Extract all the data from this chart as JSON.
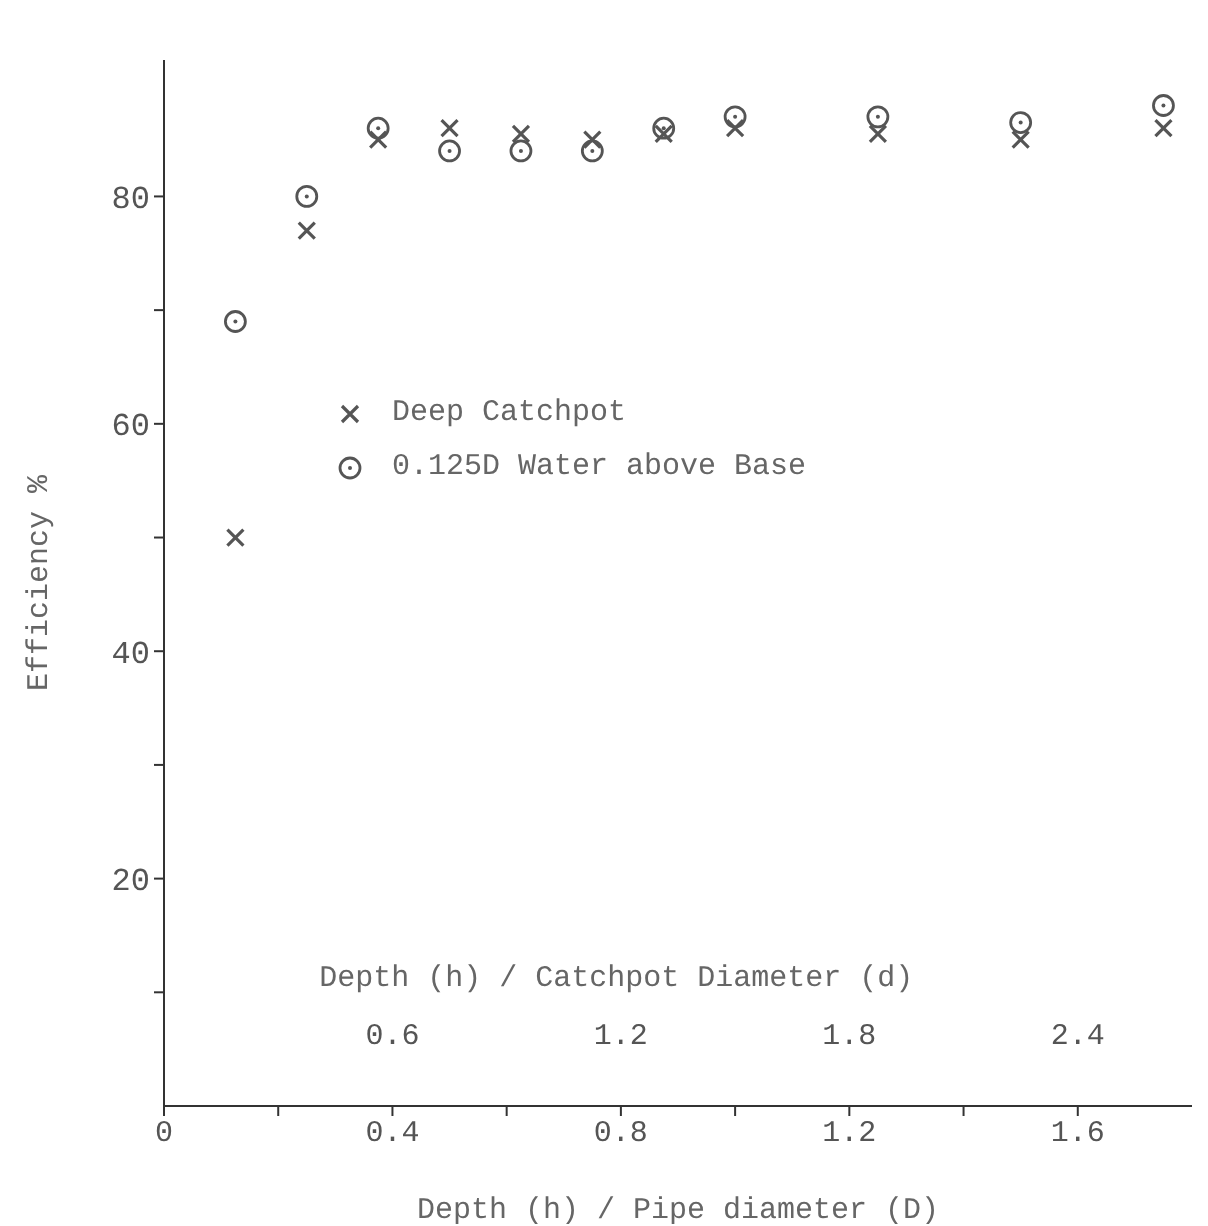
{
  "chart_data": {
    "type": "scatter",
    "xlabel": "Depth (h) / Pipe diameter (D)",
    "x2label": "Depth (h) / Catchpot Diameter (d)",
    "ylabel": "Efficiency %",
    "x": [
      0.125,
      0.25,
      0.375,
      0.5,
      0.625,
      0.75,
      0.875,
      1.0,
      1.25,
      1.5,
      1.75
    ],
    "series": [
      {
        "name": "Deep Catchpot",
        "color": "#555555",
        "marker": "cross",
        "values": [
          50,
          77,
          85,
          86,
          85.5,
          85,
          85.5,
          86,
          85.5,
          85,
          86
        ]
      },
      {
        "name": "0.125D Water above Base",
        "color": "#555555",
        "marker": "circle",
        "values": [
          69,
          80,
          86,
          84,
          84,
          84,
          86,
          87,
          87,
          86.5,
          88
        ]
      }
    ],
    "xlim": [
      0,
      1.8
    ],
    "xticks": [
      0,
      {
        "value": 0.2,
        "label": null
      },
      0.4,
      {
        "value": 0.6,
        "label": null
      },
      0.8,
      {
        "value": 1.0,
        "label": null
      },
      1.2,
      {
        "value": 1.4,
        "label": null
      },
      1.6
    ],
    "x2lim": [
      0,
      2.7
    ],
    "x2ticks": [
      0.6,
      1.2,
      1.8,
      2.4
    ],
    "ylim": [
      0,
      92
    ],
    "yticks": [
      {
        "value": 10,
        "label": null
      },
      20,
      {
        "value": 30,
        "label": null
      },
      40,
      {
        "value": 50,
        "label": null
      },
      60,
      {
        "value": 70,
        "label": null
      },
      80
    ],
    "grid": false,
    "legend": "top"
  }
}
